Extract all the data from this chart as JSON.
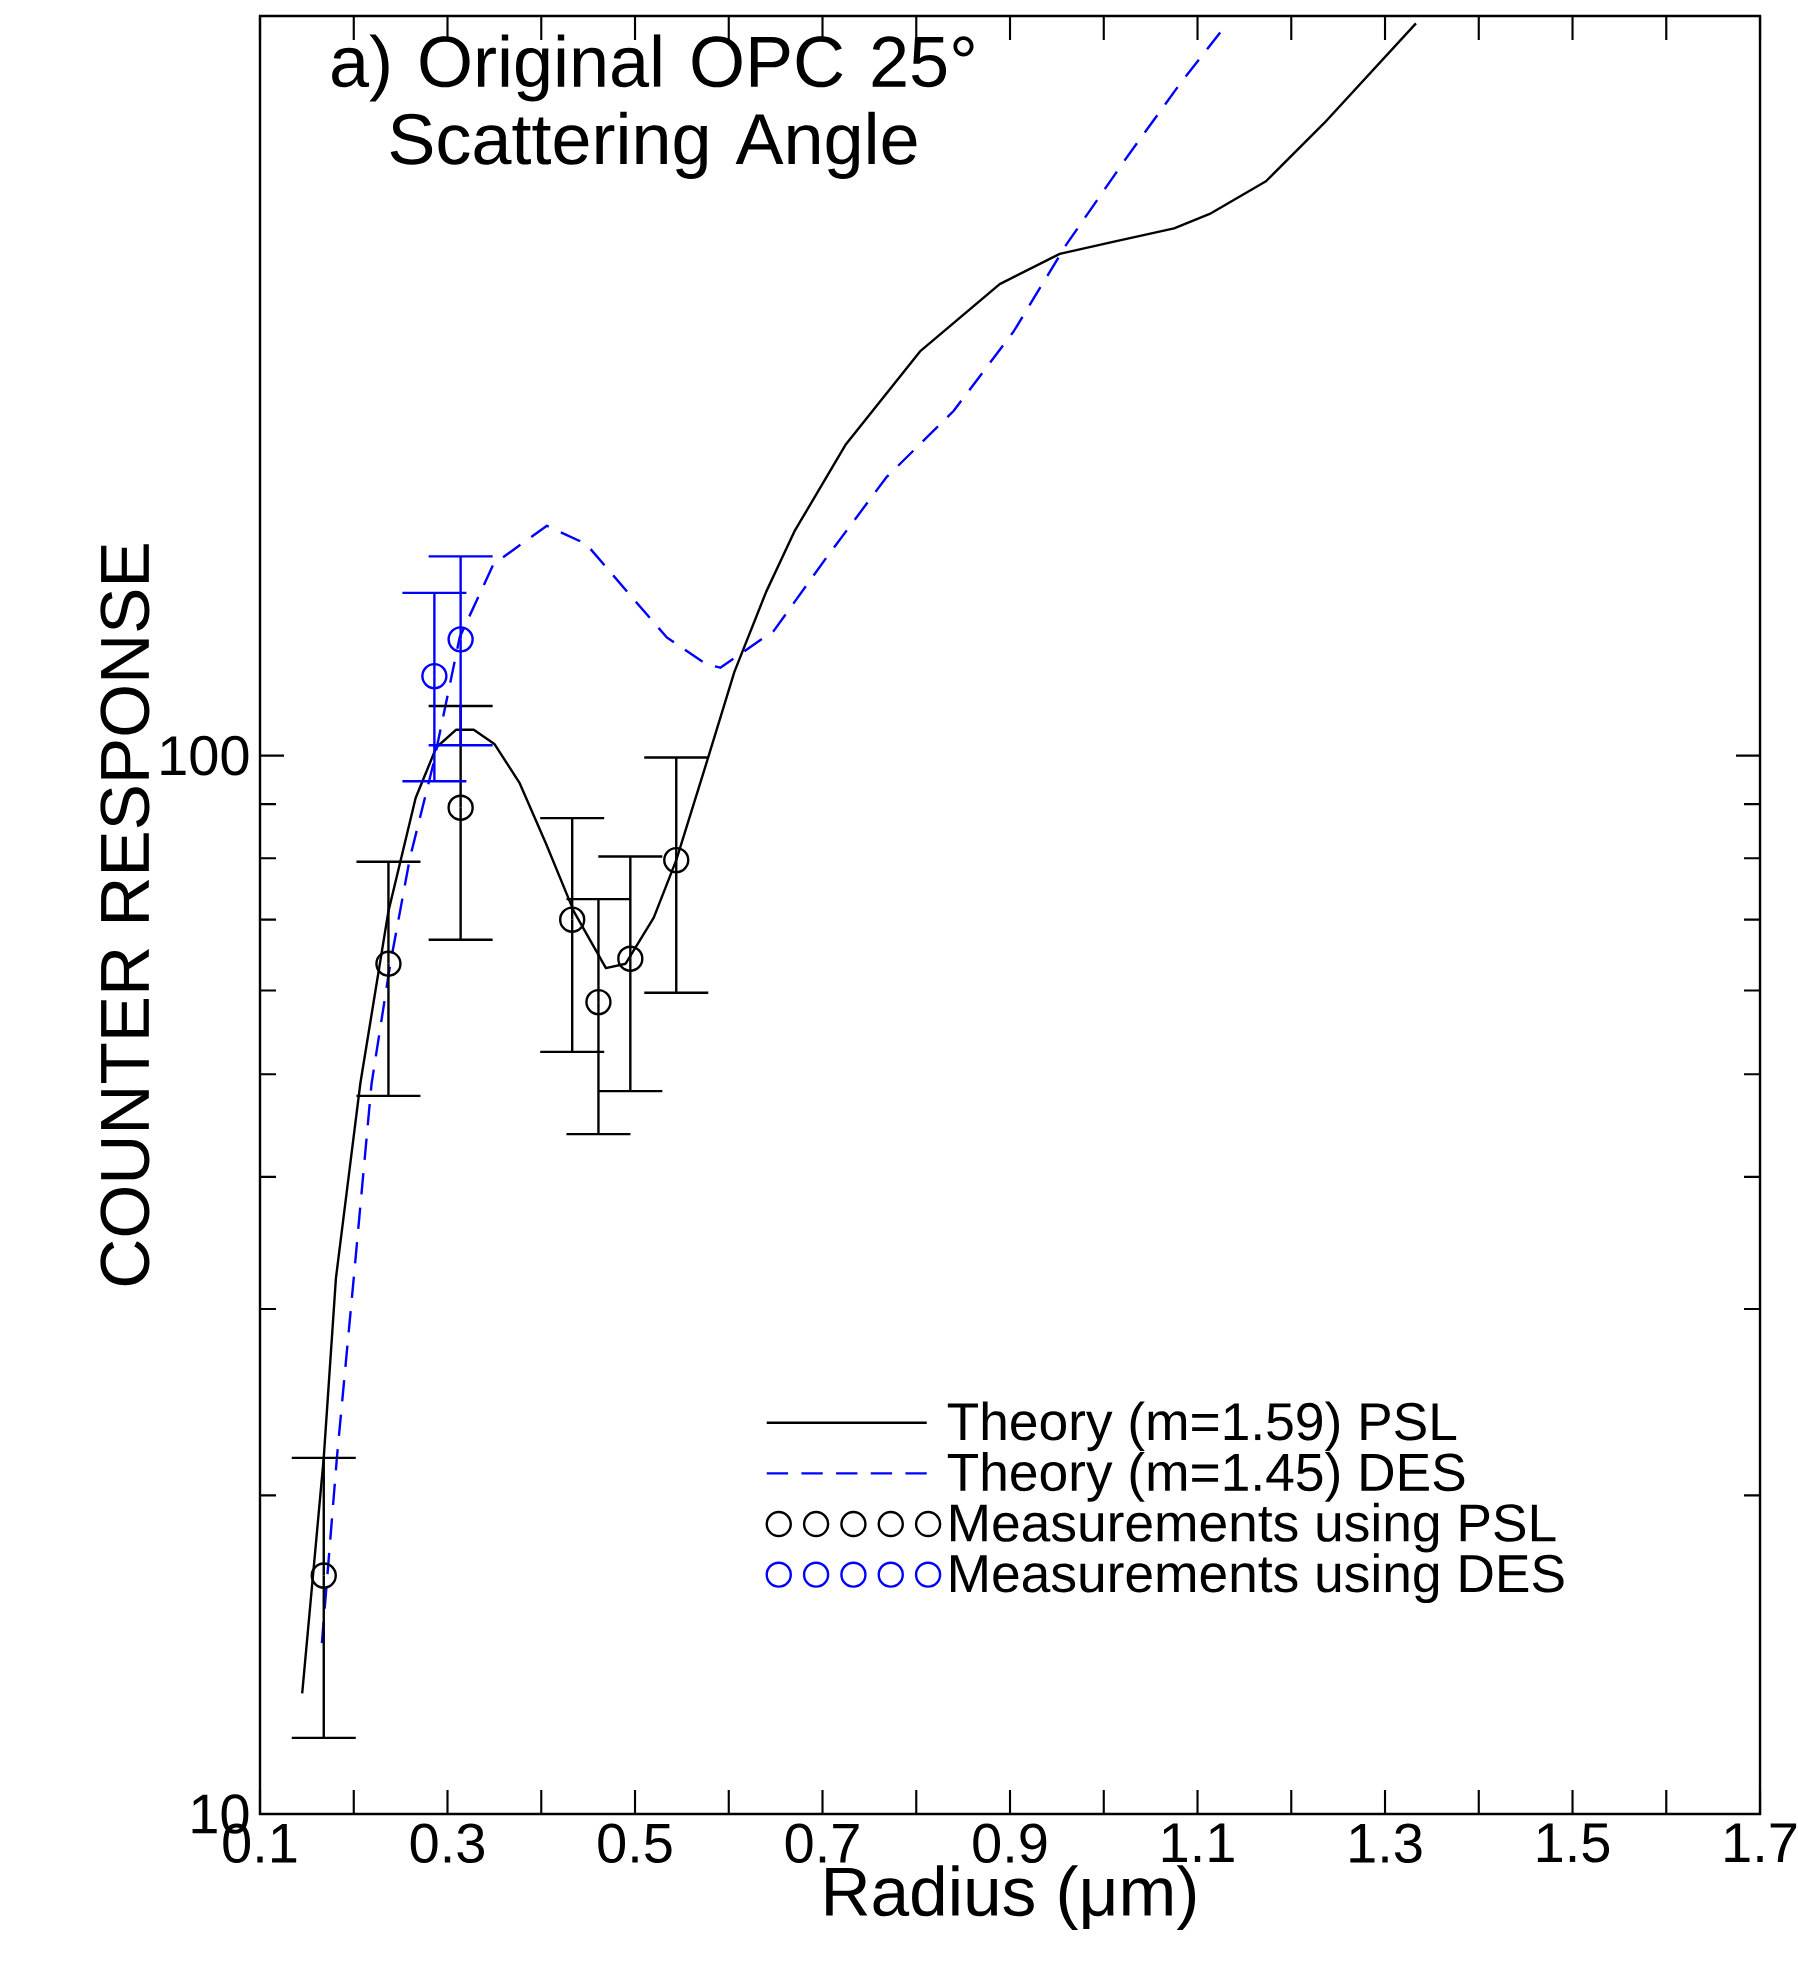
{
  "chart_data": {
    "type": "line",
    "title": "a) Original OPC 25° Scattering Angle",
    "xlabel": "Radius (μm)",
    "ylabel": "COUNTER RESPONSE",
    "log": "y",
    "xlim": [
      0.1,
      1.7
    ],
    "ylim": [
      10,
      500
    ],
    "xticks": [
      0.1,
      {
        "value": 0.2,
        "label": null
      },
      0.3,
      {
        "value": 0.4,
        "label": null
      },
      0.5,
      {
        "value": 0.6,
        "label": null
      },
      0.7,
      {
        "value": 0.8,
        "label": null
      },
      0.9,
      {
        "value": 1.0,
        "label": null
      },
      1.1,
      {
        "value": 1.2,
        "label": null
      },
      1.3,
      {
        "value": 1.4,
        "label": null
      },
      1.5,
      {
        "value": 1.6,
        "label": null
      },
      1.7
    ],
    "yticks": [
      10,
      100
    ],
    "legend": "bottom right",
    "grid": false,
    "series": [
      {
        "name": "Theory (m=1.59) PSL",
        "color": "#000000",
        "line_style": "solid",
        "marker": "none",
        "x": [
          0.145,
          0.168,
          0.181,
          0.207,
          0.237,
          0.266,
          0.288,
          0.309,
          0.328,
          0.35,
          0.377,
          0.405,
          0.435,
          0.469,
          0.49,
          0.52,
          0.544,
          0.576,
          0.606,
          0.64,
          0.67,
          0.725,
          0.804,
          0.889,
          0.953,
          1.011,
          1.075,
          1.113,
          1.173,
          1.235,
          1.333
        ],
        "values": [
          13.0,
          21.7,
          32.1,
          49.0,
          71.3,
          91.2,
          101.8,
          105.8,
          105.8,
          102.6,
          94.2,
          82.6,
          71.2,
          63.0,
          63.6,
          70.3,
          79.7,
          98.3,
          120,
          142.9,
          162.9,
          197,
          241,
          279,
          298,
          306,
          315,
          325,
          349,
          396,
          492
        ]
      },
      {
        "name": "Theory (m=1.45) DES",
        "color": "#0000ff",
        "line_style": "dashed",
        "marker": "none",
        "x": [
          0.166,
          0.182,
          0.2,
          0.219,
          0.239,
          0.26,
          0.285,
          0.313,
          0.349,
          0.406,
          0.448,
          0.491,
          0.534,
          0.576,
          0.591,
          0.648,
          0.704,
          0.768,
          0.84,
          0.904,
          0.96,
          1.024,
          1.081,
          1.131
        ],
        "values": [
          14.5,
          21.7,
          32.1,
          49.0,
          63.6,
          80.1,
          98.3,
          129.4,
          151.7,
          164.9,
          158.5,
          143.1,
          129.3,
          122.0,
          121.1,
          131.2,
          153.8,
          183.2,
          211.8,
          251.8,
          304,
          367,
          431,
          491
        ]
      },
      {
        "name": "Measurements using PSL",
        "type": "scatter",
        "color": "#000000",
        "marker": "circle",
        "x": [
          0.168,
          0.237,
          0.314,
          0.433,
          0.461,
          0.495,
          0.544
        ],
        "values": [
          16.8,
          63.6,
          89.3,
          70,
          58.5,
          64.3,
          79.7
        ],
        "errors": [
          [
            11.8,
            21.7
          ],
          [
            47.7,
            79.4
          ],
          [
            67,
            111.4
          ],
          [
            52.5,
            87.3
          ],
          [
            43.9,
            73.2
          ],
          [
            48.2,
            80.3
          ],
          [
            59.7,
            99.6
          ]
        ]
      },
      {
        "name": "Measurements using DES",
        "type": "scatter",
        "color": "#0000ff",
        "marker": "circle",
        "x": [
          0.286,
          0.314
        ],
        "values": [
          118.9,
          128.8
        ],
        "errors": [
          [
            94.6,
            142.5
          ],
          [
            102.3,
            154.3
          ]
        ]
      }
    ]
  }
}
